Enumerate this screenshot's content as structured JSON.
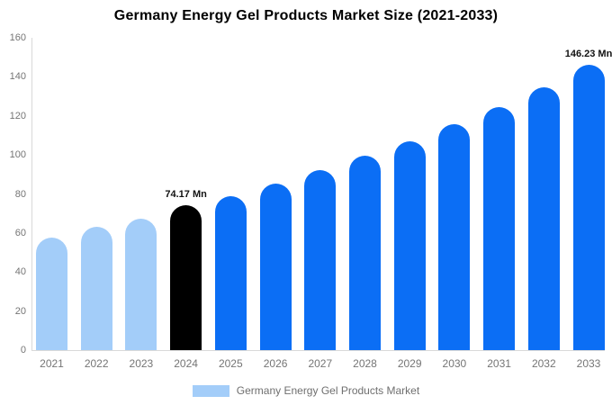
{
  "title": "Germany Energy Gel Products Market Size (2021-2033)",
  "legend": {
    "label": "Germany Energy Gel Products Market",
    "swatch_color": "#a3cdf9"
  },
  "colors": {
    "historical_bar": "#a3cdf9",
    "base_year_bar": "#000000",
    "forecast_bar": "#0b6ef5",
    "axis": "#d9d9d9",
    "tick_text": "#757575",
    "legend_text": "#6f6f6f",
    "title_text": "#000000",
    "annotation_text": "#111111"
  },
  "chart_data": {
    "type": "bar",
    "title": "Germany Energy Gel Products Market Size (2021-2033)",
    "categories": [
      "2021",
      "2022",
      "2023",
      "2024",
      "2025",
      "2026",
      "2027",
      "2028",
      "2029",
      "2030",
      "2031",
      "2032",
      "2033"
    ],
    "values": [
      57.5,
      63,
      67.5,
      74.17,
      78.8,
      85.3,
      92.1,
      99.4,
      107.1,
      115.6,
      124.6,
      134.5,
      146.23
    ],
    "unit": "Mn",
    "bar_roles": [
      "historical",
      "historical",
      "historical",
      "base_year",
      "forecast",
      "forecast",
      "forecast",
      "forecast",
      "forecast",
      "forecast",
      "forecast",
      "forecast",
      "forecast"
    ],
    "role_colors": {
      "historical": "#a3cdf9",
      "base_year": "#000000",
      "forecast": "#0b6ef5"
    },
    "annotations": [
      {
        "index": 3,
        "text": "74.17 Mn"
      },
      {
        "index": 12,
        "text": "146.23 Mn"
      }
    ],
    "xlabel": "",
    "ylabel": "",
    "ylim": [
      0,
      160
    ],
    "yticks": [
      0,
      20,
      40,
      60,
      80,
      100,
      120,
      140,
      160
    ],
    "grid": false,
    "legend_entries": [
      "Germany Energy Gel Products Market"
    ],
    "legend_position": "bottom"
  }
}
